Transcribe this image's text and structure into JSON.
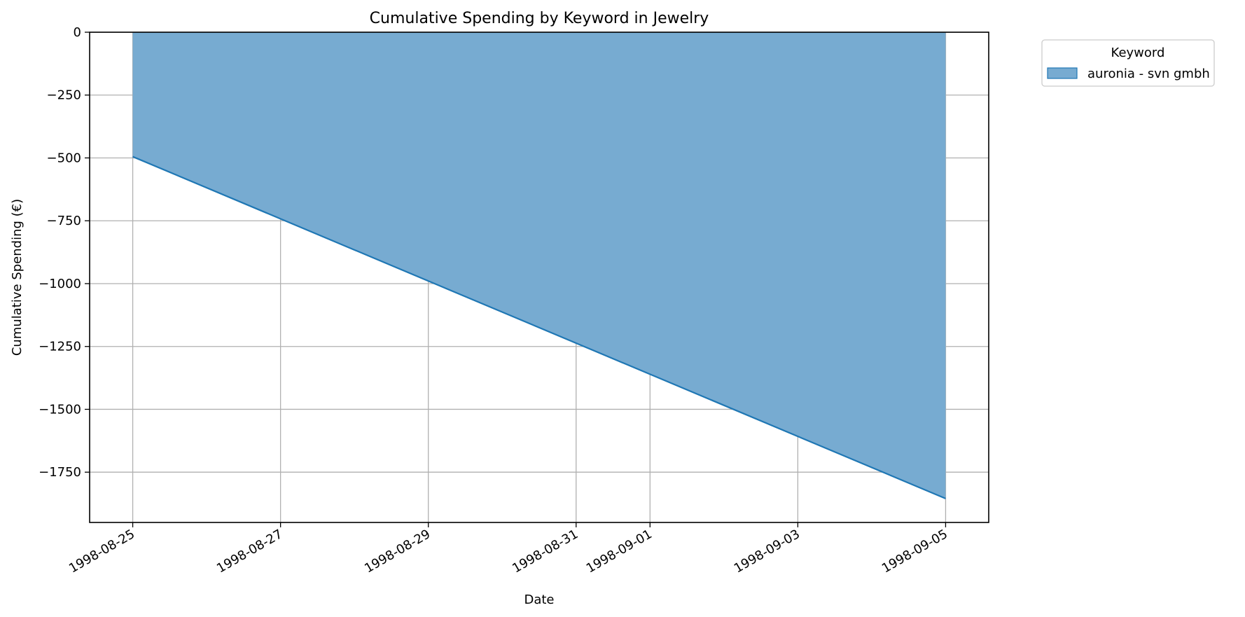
{
  "chart_data": {
    "type": "area",
    "title": "Cumulative Spending by Keyword in Jewelry",
    "xlabel": "Date",
    "ylabel": "Cumulative Spending (€)",
    "x_ticks": [
      "1998-08-25",
      "1998-08-27",
      "1998-08-29",
      "1998-08-31",
      "1998-09-01",
      "1998-09-03",
      "1998-09-05"
    ],
    "y_ticks": [
      0,
      -250,
      -500,
      -750,
      -1000,
      -1250,
      -1500,
      -1750
    ],
    "y_tick_labels": [
      "0",
      "−250",
      "−500",
      "−750",
      "−1000",
      "−1250",
      "−1500",
      "−1750"
    ],
    "xlim": [
      "1998-08-24T10:00",
      "1998-09-05T14:00"
    ],
    "ylim": [
      -1950,
      0
    ],
    "grid": true,
    "legend": {
      "title": "Keyword",
      "placement": "outside-upper-right"
    },
    "series": [
      {
        "name": "auronia - svn gmbh",
        "color": "#1f77b4",
        "fill_color": "#77abd1",
        "x": [
          "1998-08-25",
          "1998-09-05"
        ],
        "y": [
          -495,
          -1855
        ]
      }
    ]
  }
}
